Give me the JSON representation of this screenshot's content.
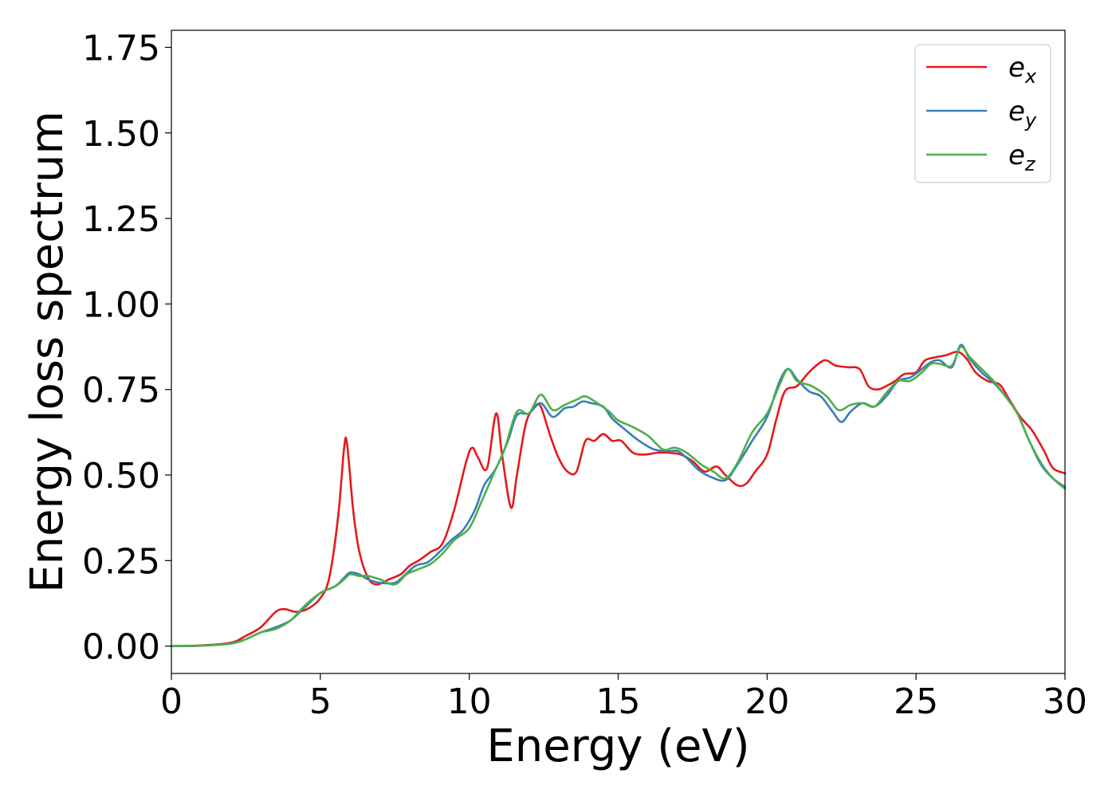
{
  "chart_data": {
    "type": "line",
    "title": "",
    "xlabel": "Energy (eV)",
    "ylabel": "Energy loss spectrum",
    "xlim": [
      0,
      30
    ],
    "ylim": [
      -0.08,
      1.8
    ],
    "xticks": [
      0,
      5,
      10,
      15,
      20,
      25,
      30
    ],
    "xtick_labels": [
      "0",
      "5",
      "10",
      "15",
      "20",
      "25",
      "30"
    ],
    "yticks": [
      0.0,
      0.25,
      0.5,
      0.75,
      1.0,
      1.25,
      1.5,
      1.75
    ],
    "ytick_labels": [
      "0.00",
      "0.25",
      "0.50",
      "0.75",
      "1.00",
      "1.25",
      "1.50",
      "1.75"
    ],
    "grid": false,
    "legend_position": "top-right",
    "series": [
      {
        "name": "e",
        "subscript": "x",
        "color": "#e41a1c",
        "points": [
          [
            0,
            0
          ],
          [
            1,
            0.002
          ],
          [
            2,
            0.01
          ],
          [
            2.5,
            0.03
          ],
          [
            3,
            0.055
          ],
          [
            3.5,
            0.1
          ],
          [
            3.8,
            0.108
          ],
          [
            4.2,
            0.1
          ],
          [
            4.6,
            0.11
          ],
          [
            5,
            0.14
          ],
          [
            5.3,
            0.2
          ],
          [
            5.6,
            0.38
          ],
          [
            5.8,
            0.58
          ],
          [
            5.9,
            0.59
          ],
          [
            6.1,
            0.4
          ],
          [
            6.3,
            0.28
          ],
          [
            6.6,
            0.2
          ],
          [
            6.9,
            0.18
          ],
          [
            7.3,
            0.195
          ],
          [
            7.7,
            0.21
          ],
          [
            8,
            0.235
          ],
          [
            8.3,
            0.25
          ],
          [
            8.7,
            0.275
          ],
          [
            9.1,
            0.3
          ],
          [
            9.5,
            0.4
          ],
          [
            9.9,
            0.54
          ],
          [
            10.1,
            0.58
          ],
          [
            10.3,
            0.55
          ],
          [
            10.6,
            0.52
          ],
          [
            10.9,
            0.68
          ],
          [
            11.1,
            0.56
          ],
          [
            11.4,
            0.405
          ],
          [
            11.6,
            0.5
          ],
          [
            11.9,
            0.65
          ],
          [
            12.2,
            0.7
          ],
          [
            12.4,
            0.7
          ],
          [
            12.7,
            0.62
          ],
          [
            13,
            0.55
          ],
          [
            13.3,
            0.51
          ],
          [
            13.6,
            0.51
          ],
          [
            13.9,
            0.6
          ],
          [
            14.2,
            0.6
          ],
          [
            14.5,
            0.62
          ],
          [
            14.8,
            0.6
          ],
          [
            15.1,
            0.6
          ],
          [
            15.5,
            0.565
          ],
          [
            15.9,
            0.56
          ],
          [
            16.3,
            0.565
          ],
          [
            16.7,
            0.565
          ],
          [
            17.1,
            0.56
          ],
          [
            17.5,
            0.54
          ],
          [
            17.9,
            0.51
          ],
          [
            18.3,
            0.525
          ],
          [
            18.6,
            0.5
          ],
          [
            19,
            0.47
          ],
          [
            19.3,
            0.475
          ],
          [
            19.6,
            0.51
          ],
          [
            20,
            0.56
          ],
          [
            20.3,
            0.66
          ],
          [
            20.6,
            0.745
          ],
          [
            21,
            0.76
          ],
          [
            21.4,
            0.8
          ],
          [
            21.8,
            0.83
          ],
          [
            22,
            0.835
          ],
          [
            22.3,
            0.82
          ],
          [
            22.7,
            0.815
          ],
          [
            23.1,
            0.81
          ],
          [
            23.4,
            0.76
          ],
          [
            23.7,
            0.75
          ],
          [
            24,
            0.76
          ],
          [
            24.3,
            0.775
          ],
          [
            24.6,
            0.795
          ],
          [
            25,
            0.8
          ],
          [
            25.3,
            0.835
          ],
          [
            25.7,
            0.845
          ],
          [
            26,
            0.85
          ],
          [
            26.4,
            0.86
          ],
          [
            26.7,
            0.84
          ],
          [
            27,
            0.8
          ],
          [
            27.4,
            0.775
          ],
          [
            27.8,
            0.765
          ],
          [
            28.1,
            0.725
          ],
          [
            28.5,
            0.67
          ],
          [
            28.9,
            0.63
          ],
          [
            29.3,
            0.57
          ],
          [
            29.6,
            0.52
          ],
          [
            30,
            0.505
          ]
        ]
      },
      {
        "name": "e",
        "subscript": "y",
        "color": "#377eb8",
        "points": [
          [
            0,
            0
          ],
          [
            1,
            0.001
          ],
          [
            2,
            0.008
          ],
          [
            2.5,
            0.02
          ],
          [
            3,
            0.04
          ],
          [
            3.5,
            0.055
          ],
          [
            4,
            0.075
          ],
          [
            4.5,
            0.115
          ],
          [
            5,
            0.155
          ],
          [
            5.5,
            0.175
          ],
          [
            5.8,
            0.2
          ],
          [
            6,
            0.215
          ],
          [
            6.3,
            0.21
          ],
          [
            6.6,
            0.195
          ],
          [
            7,
            0.185
          ],
          [
            7.5,
            0.185
          ],
          [
            7.8,
            0.205
          ],
          [
            8.2,
            0.235
          ],
          [
            8.6,
            0.245
          ],
          [
            9,
            0.275
          ],
          [
            9.4,
            0.31
          ],
          [
            9.8,
            0.34
          ],
          [
            10.2,
            0.4
          ],
          [
            10.5,
            0.47
          ],
          [
            10.9,
            0.52
          ],
          [
            11.3,
            0.6
          ],
          [
            11.6,
            0.675
          ],
          [
            12,
            0.68
          ],
          [
            12.4,
            0.71
          ],
          [
            12.8,
            0.67
          ],
          [
            13.2,
            0.695
          ],
          [
            13.5,
            0.7
          ],
          [
            13.8,
            0.715
          ],
          [
            14.1,
            0.71
          ],
          [
            14.5,
            0.7
          ],
          [
            14.8,
            0.665
          ],
          [
            15.2,
            0.635
          ],
          [
            15.7,
            0.6
          ],
          [
            16.2,
            0.575
          ],
          [
            16.7,
            0.57
          ],
          [
            17,
            0.57
          ],
          [
            17.3,
            0.55
          ],
          [
            17.7,
            0.515
          ],
          [
            18.1,
            0.495
          ],
          [
            18.6,
            0.485
          ],
          [
            19,
            0.53
          ],
          [
            19.5,
            0.6
          ],
          [
            20,
            0.67
          ],
          [
            20.4,
            0.77
          ],
          [
            20.7,
            0.81
          ],
          [
            21,
            0.78
          ],
          [
            21.4,
            0.745
          ],
          [
            21.8,
            0.73
          ],
          [
            22.2,
            0.685
          ],
          [
            22.5,
            0.655
          ],
          [
            22.8,
            0.685
          ],
          [
            23.2,
            0.71
          ],
          [
            23.6,
            0.7
          ],
          [
            24,
            0.73
          ],
          [
            24.4,
            0.775
          ],
          [
            24.8,
            0.785
          ],
          [
            25.2,
            0.81
          ],
          [
            25.5,
            0.83
          ],
          [
            25.8,
            0.835
          ],
          [
            26.2,
            0.815
          ],
          [
            26.5,
            0.88
          ],
          [
            26.8,
            0.84
          ],
          [
            27.2,
            0.8
          ],
          [
            27.6,
            0.77
          ],
          [
            28,
            0.73
          ],
          [
            28.4,
            0.68
          ],
          [
            28.8,
            0.6
          ],
          [
            29.2,
            0.53
          ],
          [
            29.6,
            0.49
          ],
          [
            30,
            0.465
          ]
        ]
      },
      {
        "name": "e",
        "subscript": "z",
        "color": "#4daf4a",
        "points": [
          [
            0,
            0
          ],
          [
            1,
            0.001
          ],
          [
            2,
            0.007
          ],
          [
            2.5,
            0.02
          ],
          [
            3,
            0.04
          ],
          [
            3.5,
            0.05
          ],
          [
            4,
            0.075
          ],
          [
            4.5,
            0.12
          ],
          [
            5,
            0.155
          ],
          [
            5.5,
            0.175
          ],
          [
            5.8,
            0.195
          ],
          [
            6,
            0.21
          ],
          [
            6.3,
            0.205
          ],
          [
            6.6,
            0.205
          ],
          [
            7,
            0.195
          ],
          [
            7.5,
            0.18
          ],
          [
            7.9,
            0.21
          ],
          [
            8.3,
            0.225
          ],
          [
            8.7,
            0.24
          ],
          [
            9.1,
            0.27
          ],
          [
            9.5,
            0.31
          ],
          [
            10,
            0.345
          ],
          [
            10.4,
            0.42
          ],
          [
            10.8,
            0.5
          ],
          [
            11.2,
            0.58
          ],
          [
            11.6,
            0.685
          ],
          [
            12,
            0.68
          ],
          [
            12.4,
            0.735
          ],
          [
            12.8,
            0.69
          ],
          [
            13.2,
            0.705
          ],
          [
            13.6,
            0.72
          ],
          [
            13.9,
            0.73
          ],
          [
            14.3,
            0.71
          ],
          [
            14.7,
            0.685
          ],
          [
            15,
            0.66
          ],
          [
            15.5,
            0.64
          ],
          [
            16,
            0.615
          ],
          [
            16.5,
            0.575
          ],
          [
            16.9,
            0.58
          ],
          [
            17.3,
            0.565
          ],
          [
            17.8,
            0.53
          ],
          [
            18.2,
            0.51
          ],
          [
            18.6,
            0.49
          ],
          [
            19,
            0.535
          ],
          [
            19.5,
            0.625
          ],
          [
            20,
            0.68
          ],
          [
            20.4,
            0.76
          ],
          [
            20.7,
            0.81
          ],
          [
            21,
            0.775
          ],
          [
            21.5,
            0.76
          ],
          [
            22,
            0.73
          ],
          [
            22.4,
            0.69
          ],
          [
            22.8,
            0.705
          ],
          [
            23.2,
            0.71
          ],
          [
            23.6,
            0.7
          ],
          [
            24,
            0.74
          ],
          [
            24.4,
            0.775
          ],
          [
            24.8,
            0.775
          ],
          [
            25.2,
            0.8
          ],
          [
            25.5,
            0.825
          ],
          [
            25.8,
            0.825
          ],
          [
            26.2,
            0.82
          ],
          [
            26.5,
            0.875
          ],
          [
            26.8,
            0.845
          ],
          [
            27.2,
            0.81
          ],
          [
            27.6,
            0.775
          ],
          [
            28,
            0.73
          ],
          [
            28.4,
            0.68
          ],
          [
            28.8,
            0.6
          ],
          [
            29.2,
            0.535
          ],
          [
            29.6,
            0.49
          ],
          [
            30,
            0.46
          ]
        ]
      }
    ]
  }
}
